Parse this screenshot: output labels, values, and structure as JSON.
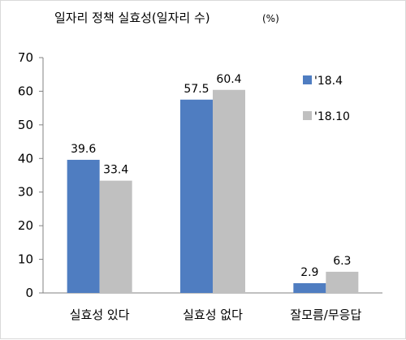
{
  "chart_data": {
    "type": "bar",
    "title": "일자리 정책 실효성(일자리 수)",
    "unit": "(%)",
    "categories": [
      "실효성 있다",
      "실효성 없다",
      "잘모름/무응답"
    ],
    "series": [
      {
        "name": "'18.4",
        "values": [
          39.6,
          57.5,
          2.9
        ],
        "color": "#4f7dc1"
      },
      {
        "name": "'18.10",
        "values": [
          33.4,
          60.4,
          6.3
        ],
        "color": "#c0c0c0"
      }
    ],
    "ylim": [
      0,
      70
    ],
    "yticks": [
      0,
      10,
      20,
      30,
      40,
      50,
      60,
      70
    ],
    "data_labels": [
      [
        "39.6",
        "57.5",
        "2.9"
      ],
      [
        "33.4",
        "60.4",
        "6.3"
      ]
    ],
    "grid": false,
    "legend_position": "right"
  }
}
